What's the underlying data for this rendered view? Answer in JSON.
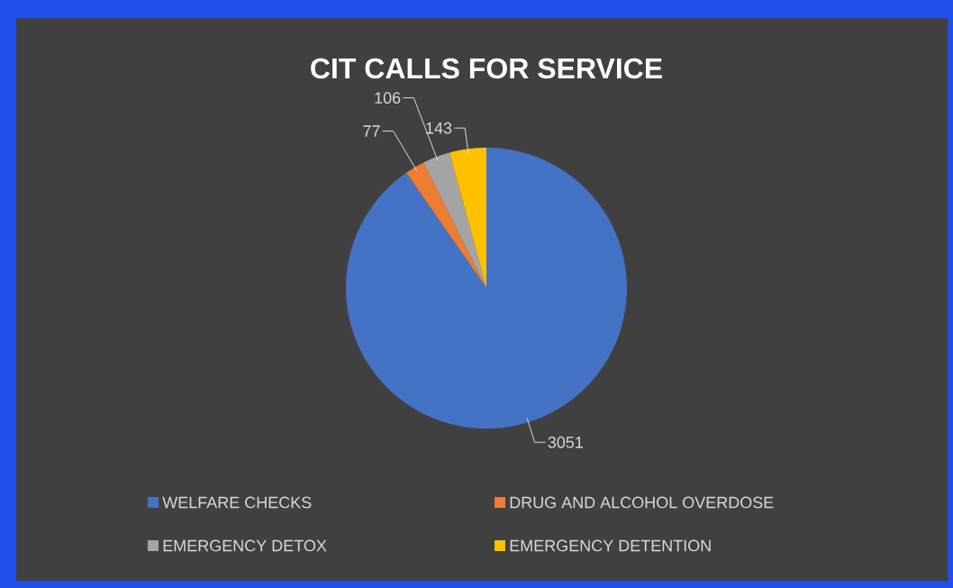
{
  "chart_data": {
    "type": "pie",
    "title": "CIT CALLS FOR SERVICE",
    "categories": [
      "WELFARE CHECKS",
      "DRUG AND ALCOHOL OVERDOSE",
      "EMERGENCY DETOX",
      "EMERGENCY DETENTION"
    ],
    "values": [
      3051,
      77,
      106,
      143
    ],
    "colors": [
      "#4472c4",
      "#ed7d31",
      "#a5a5a5",
      "#ffc000"
    ],
    "data_labels": true,
    "legend": "bottom"
  }
}
